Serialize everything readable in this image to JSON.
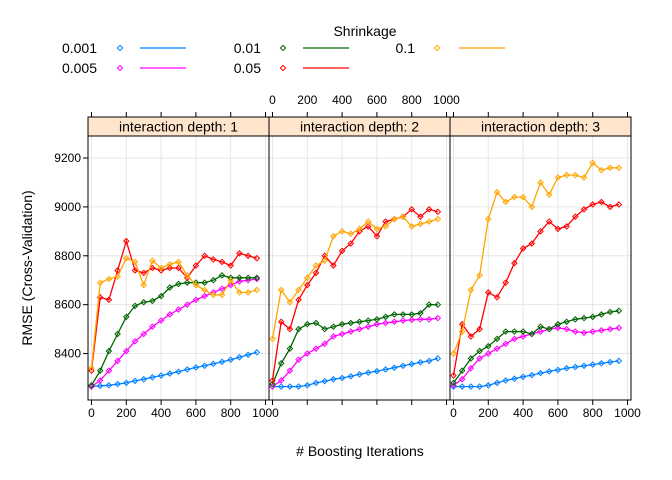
{
  "chart_data": {
    "type": "line",
    "xlabel": "# Boosting Iterations",
    "ylabel": "RMSE (Cross-Validation)",
    "xlim": [
      -20,
      1020
    ],
    "ylim": [
      8210,
      9290
    ],
    "x_ticks": [
      0,
      200,
      400,
      600,
      800,
      1000
    ],
    "y_ticks": [
      8400,
      8600,
      8800,
      9000,
      9200
    ],
    "legend": {
      "title": "Shrinkage",
      "position": "top",
      "entries": [
        {
          "label": "0.001",
          "color": "#0080ff"
        },
        {
          "label": "0.005",
          "color": "#ff00ff"
        },
        {
          "label": "0.01",
          "color": "#006400"
        },
        {
          "label": "0.05",
          "color": "#ff0000"
        },
        {
          "label": "0.1",
          "color": "#ffa500"
        }
      ]
    },
    "x": [
      0,
      50,
      100,
      150,
      200,
      250,
      300,
      350,
      400,
      450,
      500,
      550,
      600,
      650,
      700,
      750,
      800,
      850,
      900,
      950
    ],
    "panels": [
      {
        "strip": "interaction depth: 1",
        "series": [
          {
            "name": "0.001",
            "color": "#0080ff",
            "values": [
              8265,
              8268,
              8270,
              8275,
              8280,
              8288,
              8295,
              8303,
              8310,
              8318,
              8326,
              8335,
              8343,
              8350,
              8358,
              8366,
              8375,
              8385,
              8395,
              8405
            ]
          },
          {
            "name": "0.005",
            "color": "#ff00ff",
            "values": [
              8265,
              8290,
              8330,
              8370,
              8410,
              8450,
              8480,
              8510,
              8535,
              8560,
              8580,
              8600,
              8620,
              8635,
              8650,
              8665,
              8680,
              8695,
              8700,
              8705
            ]
          },
          {
            "name": "0.01",
            "color": "#006400",
            "values": [
              8270,
              8330,
              8410,
              8480,
              8550,
              8595,
              8610,
              8615,
              8635,
              8670,
              8685,
              8690,
              8690,
              8690,
              8700,
              8720,
              8710,
              8710,
              8710,
              8710
            ]
          },
          {
            "name": "0.05",
            "color": "#ff0000",
            "values": [
              8330,
              8630,
              8620,
              8740,
              8860,
              8740,
              8730,
              8750,
              8740,
              8750,
              8750,
              8710,
              8760,
              8800,
              8785,
              8775,
              8760,
              8810,
              8800,
              8790
            ]
          },
          {
            "name": "0.1",
            "color": "#ffa500",
            "values": [
              8340,
              8690,
              8705,
              8715,
              8790,
              8775,
              8680,
              8780,
              8750,
              8765,
              8775,
              8720,
              8680,
              8660,
              8640,
              8640,
              8700,
              8650,
              8650,
              8660
            ]
          }
        ]
      },
      {
        "strip": "interaction depth: 2",
        "series": [
          {
            "name": "0.001",
            "color": "#0080ff",
            "values": [
              8265,
              8265,
              8265,
              8265,
              8270,
              8280,
              8287,
              8295,
              8300,
              8307,
              8315,
              8322,
              8328,
              8335,
              8342,
              8350,
              8357,
              8364,
              8370,
              8380
            ]
          },
          {
            "name": "0.005",
            "color": "#ff00ff",
            "values": [
              8265,
              8290,
              8330,
              8375,
              8400,
              8420,
              8440,
              8470,
              8480,
              8490,
              8500,
              8510,
              8520,
              8525,
              8530,
              8535,
              8538,
              8540,
              8540,
              8545
            ]
          },
          {
            "name": "0.01",
            "color": "#006400",
            "values": [
              8275,
              8360,
              8420,
              8500,
              8520,
              8525,
              8500,
              8510,
              8520,
              8525,
              8530,
              8535,
              8540,
              8550,
              8560,
              8560,
              8560,
              8565,
              8600,
              8600
            ]
          },
          {
            "name": "0.05",
            "color": "#ff0000",
            "values": [
              8290,
              8530,
              8500,
              8620,
              8680,
              8730,
              8800,
              8760,
              8820,
              8850,
              8900,
              8920,
              8880,
              8940,
              8950,
              8960,
              8990,
              8960,
              8990,
              8980
            ]
          },
          {
            "name": "0.1",
            "color": "#ffa500",
            "values": [
              8460,
              8660,
              8610,
              8660,
              8710,
              8760,
              8780,
              8880,
              8900,
              8890,
              8910,
              8940,
              8910,
              8920,
              8950,
              8960,
              8920,
              8930,
              8940,
              8950
            ]
          }
        ]
      },
      {
        "strip": "interaction depth: 3",
        "series": [
          {
            "name": "0.001",
            "color": "#0080ff",
            "values": [
              8265,
              8265,
              8265,
              8265,
              8270,
              8280,
              8290,
              8297,
              8305,
              8312,
              8320,
              8327,
              8333,
              8340,
              8345,
              8350,
              8355,
              8360,
              8365,
              8370
            ]
          },
          {
            "name": "0.005",
            "color": "#ff00ff",
            "values": [
              8270,
              8295,
              8340,
              8380,
              8400,
              8420,
              8440,
              8460,
              8470,
              8480,
              8490,
              8500,
              8505,
              8500,
              8490,
              8485,
              8490,
              8495,
              8500,
              8505
            ]
          },
          {
            "name": "0.01",
            "color": "#006400",
            "values": [
              8280,
              8330,
              8380,
              8410,
              8430,
              8460,
              8490,
              8490,
              8490,
              8480,
              8510,
              8500,
              8520,
              8530,
              8540,
              8545,
              8550,
              8560,
              8570,
              8575
            ]
          },
          {
            "name": "0.05",
            "color": "#ff0000",
            "values": [
              8310,
              8520,
              8470,
              8500,
              8650,
              8630,
              8690,
              8770,
              8830,
              8850,
              8900,
              8940,
              8910,
              8920,
              8960,
              8990,
              9010,
              9020,
              9000,
              9010
            ]
          },
          {
            "name": "0.1",
            "color": "#ffa500",
            "values": [
              8400,
              8490,
              8660,
              8720,
              8950,
              9060,
              9020,
              9040,
              9040,
              9000,
              9100,
              9050,
              9120,
              9130,
              9130,
              9120,
              9180,
              9150,
              9160,
              9160
            ]
          }
        ]
      }
    ]
  }
}
